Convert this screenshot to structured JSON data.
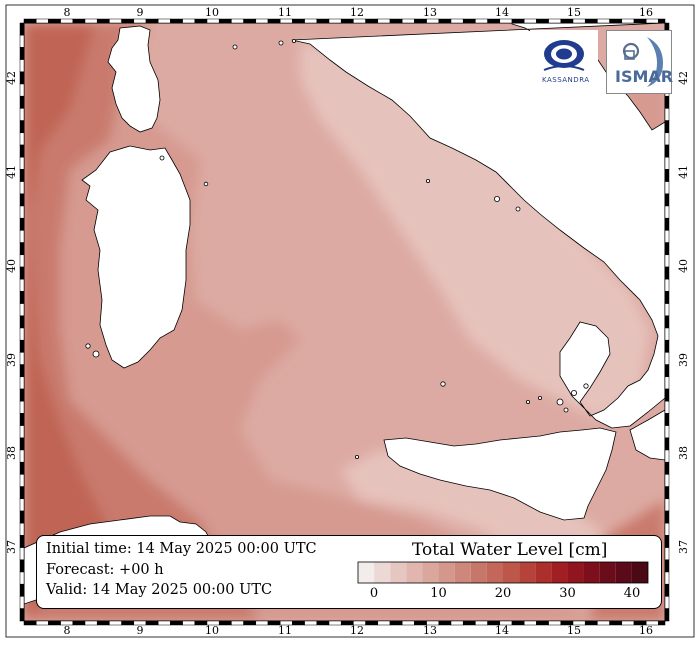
{
  "map": {
    "lon_ticks": [
      "8",
      "9",
      "10",
      "11",
      "12",
      "13",
      "14",
      "15",
      "16"
    ],
    "lat_ticks": [
      "42",
      "41",
      "40",
      "39",
      "38",
      "37"
    ],
    "land_color": "#ffffff",
    "sea_colors": {
      "base": "#dcaaa2",
      "light": "#e6c2bc",
      "medium": "#d69a90",
      "dark": "#c97a6d",
      "darkest": "#c06555"
    }
  },
  "info": {
    "initial_time": "Initial time: 14 May 2025 00:00 UTC",
    "forecast": "Forecast: +00 h",
    "valid": "Valid: 14 May 2025 00:00 UTC"
  },
  "colorbar": {
    "title": "Total Water Level [cm]",
    "labels": [
      "0",
      "10",
      "20",
      "30",
      "40"
    ],
    "colors": [
      "#f2eceb",
      "#ecd9d5",
      "#e6c6c0",
      "#e0b6ae",
      "#daa79d",
      "#d4978c",
      "#cd877b",
      "#c7776a",
      "#c2675a",
      "#bc5749",
      "#b5433a",
      "#ad2f2c",
      "#a11e23",
      "#90151f",
      "#7d0f1c",
      "#6b0c1a",
      "#5a0a18",
      "#4a0914"
    ]
  },
  "logos": {
    "left_text": "KASSANDRA",
    "right_text": "ISMAR"
  }
}
